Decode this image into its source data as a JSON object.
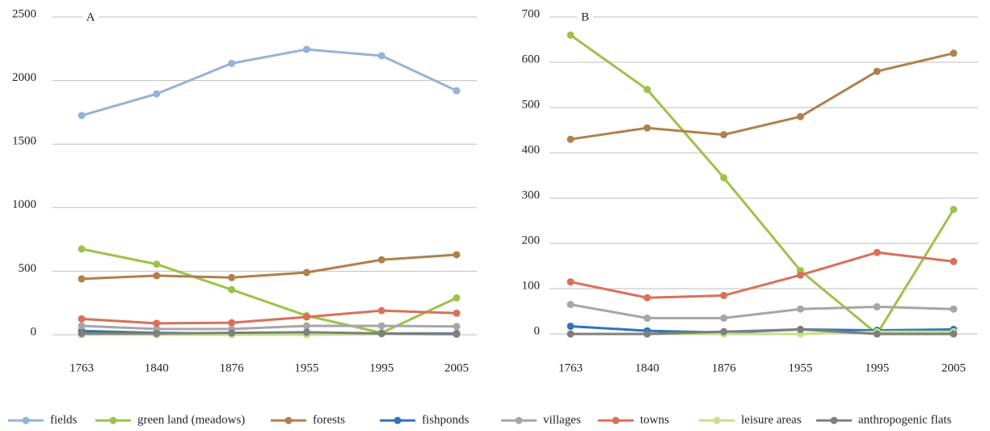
{
  "chart_data": [
    {
      "type": "line",
      "annotation": "A",
      "categories": [
        "1763",
        "1840",
        "1876",
        "1955",
        "1995",
        "2005"
      ],
      "ylim": [
        0,
        2500
      ],
      "yticks": [
        0,
        500,
        1000,
        1500,
        2000,
        2500
      ],
      "grid": true,
      "series": [
        {
          "name": "fields",
          "color": "#95b3d7",
          "values": [
            1725,
            1895,
            2135,
            2245,
            2195,
            1920
          ]
        },
        {
          "name": "green land (meadows)",
          "color": "#9dc24a",
          "values": [
            675,
            555,
            355,
            150,
            15,
            290
          ]
        },
        {
          "name": "forests",
          "color": "#b0804e",
          "values": [
            440,
            465,
            450,
            490,
            590,
            630
          ]
        },
        {
          "name": "fishponds",
          "color": "#2e75b6",
          "values": [
            30,
            15,
            10,
            10,
            10,
            10
          ]
        },
        {
          "name": "villages",
          "color": "#a6a6a6",
          "values": [
            70,
            45,
            45,
            70,
            70,
            65
          ]
        },
        {
          "name": "towns",
          "color": "#d9705a",
          "values": [
            125,
            90,
            95,
            140,
            190,
            170
          ]
        },
        {
          "name": "leisure areas",
          "color": "#c5e08a",
          "values": [
            0,
            0,
            0,
            0,
            5,
            5
          ]
        },
        {
          "name": "anthropogenic flats",
          "color": "#7f7f7f",
          "values": [
            10,
            10,
            15,
            20,
            10,
            5
          ]
        }
      ]
    },
    {
      "type": "line",
      "annotation": "B",
      "categories": [
        "1763",
        "1840",
        "1876",
        "1955",
        "1995",
        "2005"
      ],
      "ylim": [
        0,
        700
      ],
      "yticks": [
        0,
        100,
        200,
        300,
        400,
        500,
        600,
        700
      ],
      "grid": true,
      "series": [
        {
          "name": "green land (meadows)",
          "color": "#9dc24a",
          "values": [
            660,
            540,
            345,
            140,
            0,
            275
          ]
        },
        {
          "name": "forests",
          "color": "#b0804e",
          "values": [
            430,
            455,
            440,
            480,
            580,
            620
          ]
        },
        {
          "name": "fishponds",
          "color": "#2e75b6",
          "values": [
            17,
            7,
            3,
            10,
            8,
            10
          ]
        },
        {
          "name": "villages",
          "color": "#a6a6a6",
          "values": [
            65,
            35,
            35,
            55,
            60,
            55
          ]
        },
        {
          "name": "towns",
          "color": "#d9705a",
          "values": [
            115,
            80,
            85,
            130,
            180,
            160
          ]
        },
        {
          "name": "leisure areas",
          "color": "#c5e08a",
          "values": [
            0,
            0,
            0,
            0,
            5,
            5
          ]
        },
        {
          "name": "anthropogenic flats",
          "color": "#7f7f7f",
          "values": [
            0,
            0,
            5,
            10,
            0,
            0
          ]
        }
      ]
    }
  ]
}
